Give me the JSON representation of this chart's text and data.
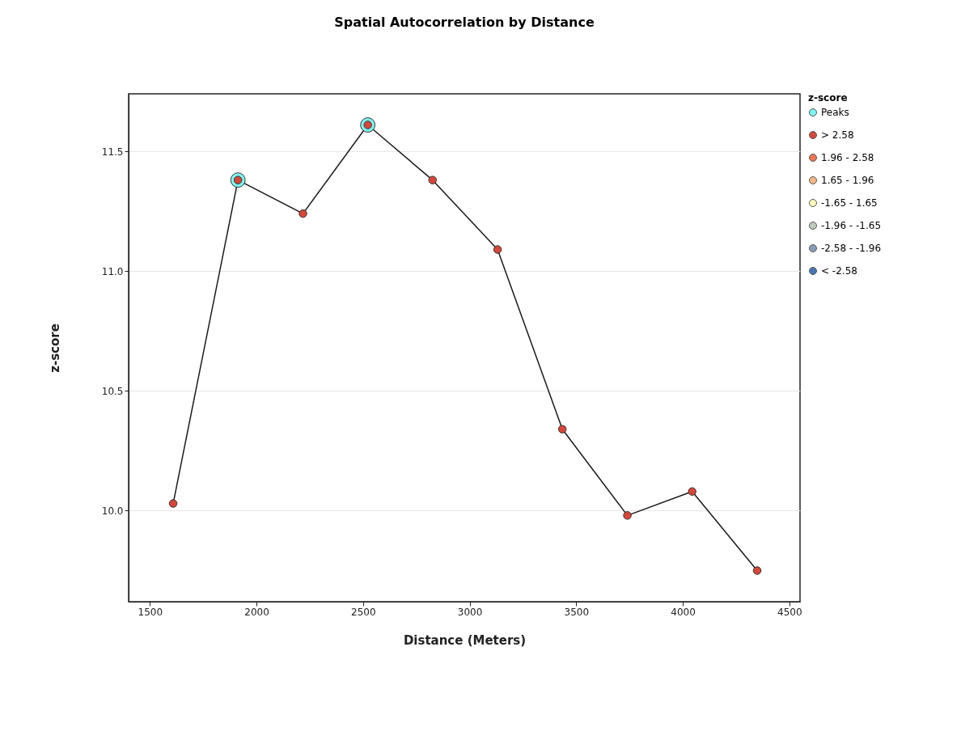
{
  "chart_data": {
    "type": "line",
    "title": "Spatial Autocorrelation by Distance",
    "xlabel": "Distance (Meters)",
    "ylabel": "z-score",
    "legend_title": "z-score",
    "x": [
      1609,
      1913,
      2218,
      2522,
      2826,
      3131,
      3435,
      3740,
      4044,
      4349
    ],
    "series": [
      {
        "color": "#1a1a1a",
        "marker": "none",
        "values": [
          10.03,
          11.38,
          11.24,
          11.61,
          11.38,
          11.09,
          10.34,
          9.98,
          10.08,
          9.75
        ]
      },
      {
        "type": "scatter",
        "name": "Peaks",
        "color": "#7ff5f2",
        "x": [
          1913,
          2522
        ],
        "values": [
          11.38,
          11.61
        ]
      },
      {
        "type": "scatter",
        "name": "> 2.58",
        "color": "#d6473a",
        "values": [
          10.03,
          11.38,
          11.24,
          11.61,
          11.38,
          11.09,
          10.34,
          9.98,
          10.08,
          9.75
        ]
      },
      {
        "type": "scatter",
        "name": "1.96 - 2.58",
        "color": "#ed7551",
        "values": [
          null,
          null,
          null,
          null,
          null,
          null,
          null,
          null,
          null,
          null
        ]
      },
      {
        "type": "scatter",
        "name": "1.65 - 1.96",
        "color": "#fab984",
        "values": [
          null,
          null,
          null,
          null,
          null,
          null,
          null,
          null,
          null,
          null
        ]
      },
      {
        "type": "scatter",
        "name": "-1.65 - 1.65",
        "color": "#ffffbf",
        "values": [
          null,
          null,
          null,
          null,
          null,
          null,
          null,
          null,
          null,
          null
        ]
      },
      {
        "type": "scatter",
        "name": "-1.96 - -1.65",
        "color": "#c0ccbe",
        "values": [
          null,
          null,
          null,
          null,
          null,
          null,
          null,
          null,
          null,
          null
        ]
      },
      {
        "type": "scatter",
        "name": "-2.58 - -1.96",
        "color": "#849eba",
        "values": [
          null,
          null,
          null,
          null,
          null,
          null,
          null,
          null,
          null,
          null
        ]
      },
      {
        "type": "scatter",
        "name": "< -2.58",
        "color": "#4575b5",
        "values": [
          null,
          null,
          null,
          null,
          null,
          null,
          null,
          null,
          null,
          null
        ]
      }
    ],
    "xlim": [
      1400,
      4550
    ],
    "xticks": [
      1500,
      2000,
      2500,
      3000,
      3500,
      4000,
      4500
    ],
    "ylim": [
      9.62,
      11.74
    ],
    "yticks": [
      {
        "value": 10,
        "label": "10.0"
      },
      10.5,
      {
        "value": 11,
        "label": "11.0"
      },
      11.5
    ],
    "marker": "circle",
    "grid": "y",
    "legend": "right"
  }
}
